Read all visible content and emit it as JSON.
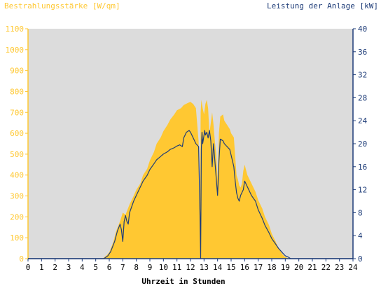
{
  "chart_data": {
    "type": "area",
    "left_axis": {
      "title": "Bestrahlungsstärke [W/qm]",
      "ylim": [
        0,
        1100
      ],
      "ticks": [
        0,
        100,
        200,
        300,
        400,
        500,
        600,
        700,
        800,
        900,
        1000,
        1100
      ],
      "color": "#ffc832"
    },
    "right_axis": {
      "title": "Leistung der Anlage [kW]",
      "ylim": [
        0,
        40
      ],
      "ticks": [
        0,
        4,
        8,
        12,
        16,
        20,
        24,
        28,
        32,
        36,
        40
      ],
      "color": "#1e3c78"
    },
    "x_axis": {
      "title": "Uhrzeit in Stunden",
      "xlim": [
        0,
        24
      ],
      "ticks": [
        0,
        1,
        2,
        3,
        4,
        5,
        6,
        7,
        8,
        9,
        10,
        11,
        12,
        13,
        14,
        15,
        16,
        17,
        18,
        19,
        20,
        21,
        22,
        23,
        24
      ]
    },
    "grid": false,
    "background_color": "#dcdcdc",
    "series": [
      {
        "axis": "left",
        "style": "area",
        "color": "#ffc832",
        "x": [
          0,
          5.5,
          5.8,
          6.0,
          6.3,
          6.5,
          6.8,
          7.0,
          7.2,
          7.5,
          7.8,
          8.0,
          8.3,
          8.5,
          8.8,
          9.0,
          9.3,
          9.5,
          9.8,
          10.0,
          10.3,
          10.5,
          10.8,
          11.0,
          11.3,
          11.5,
          11.8,
          12.0,
          12.2,
          12.4,
          12.6,
          12.7,
          12.75,
          12.8,
          12.9,
          13.0,
          13.1,
          13.2,
          13.3,
          13.4,
          13.5,
          13.6,
          13.7,
          13.8,
          13.9,
          14.0,
          14.1,
          14.2,
          14.4,
          14.5,
          14.7,
          14.9,
          15.0,
          15.2,
          15.4,
          15.5,
          15.6,
          15.7,
          15.8,
          15.9,
          16.0,
          16.2,
          16.5,
          16.8,
          17.0,
          17.3,
          17.5,
          17.8,
          18.0,
          18.3,
          18.5,
          18.8,
          19.0,
          19.3,
          24
        ],
        "y": [
          0,
          0,
          15,
          30,
          80,
          130,
          180,
          220,
          210,
          260,
          300,
          330,
          360,
          400,
          430,
          470,
          510,
          550,
          580,
          610,
          640,
          665,
          690,
          710,
          720,
          735,
          745,
          750,
          740,
          720,
          560,
          150,
          700,
          760,
          720,
          690,
          740,
          760,
          720,
          600,
          650,
          700,
          640,
          560,
          500,
          380,
          600,
          680,
          690,
          660,
          640,
          620,
          600,
          580,
          400,
          380,
          350,
          340,
          360,
          420,
          450,
          400,
          360,
          320,
          280,
          240,
          200,
          160,
          120,
          80,
          50,
          20,
          8,
          0,
          0
        ]
      },
      {
        "axis": "right",
        "style": "line",
        "color": "#1e3c78",
        "x": [
          0,
          5.6,
          5.9,
          6.1,
          6.4,
          6.6,
          6.8,
          6.9,
          7.0,
          7.1,
          7.2,
          7.3,
          7.4,
          7.5,
          7.8,
          8.0,
          8.3,
          8.5,
          8.8,
          9.0,
          9.3,
          9.5,
          9.8,
          10.0,
          10.3,
          10.5,
          10.8,
          11.0,
          11.2,
          11.4,
          11.5,
          11.7,
          11.9,
          12.0,
          12.2,
          12.4,
          12.6,
          12.7,
          12.75,
          12.8,
          12.85,
          12.9,
          13.0,
          13.05,
          13.1,
          13.2,
          13.3,
          13.4,
          13.5,
          13.6,
          13.7,
          13.8,
          13.9,
          14.0,
          14.1,
          14.2,
          14.4,
          14.5,
          14.7,
          14.9,
          15.0,
          15.2,
          15.3,
          15.4,
          15.5,
          15.6,
          15.7,
          15.9,
          16.0,
          16.2,
          16.5,
          16.8,
          17.0,
          17.3,
          17.5,
          17.8,
          18.0,
          18.3,
          18.5,
          18.8,
          19.0,
          19.2,
          19.4,
          24
        ],
        "y": [
          0,
          0,
          0.5,
          1.2,
          3.0,
          4.8,
          6.0,
          5.0,
          3.0,
          6.5,
          7.5,
          6.5,
          6.0,
          8.0,
          10.0,
          11.0,
          12.5,
          13.5,
          14.5,
          15.5,
          16.5,
          17.2,
          17.8,
          18.2,
          18.6,
          19.0,
          19.3,
          19.6,
          19.8,
          19.5,
          21.0,
          22.0,
          22.3,
          22.0,
          21.0,
          20.0,
          19.5,
          8.0,
          0,
          19.0,
          22.0,
          20.0,
          21.5,
          22.3,
          21.5,
          22.0,
          21.0,
          22.3,
          20.5,
          16.0,
          20.0,
          17.0,
          14.0,
          11.0,
          17.0,
          20.8,
          20.5,
          20.0,
          19.5,
          19.0,
          18.0,
          16.0,
          13.5,
          11.5,
          10.5,
          10.0,
          11.0,
          12.0,
          13.5,
          12.5,
          11.0,
          10.0,
          8.5,
          7.0,
          5.8,
          4.5,
          3.5,
          2.5,
          1.8,
          1.0,
          0.5,
          0.3,
          0,
          0
        ]
      }
    ]
  }
}
